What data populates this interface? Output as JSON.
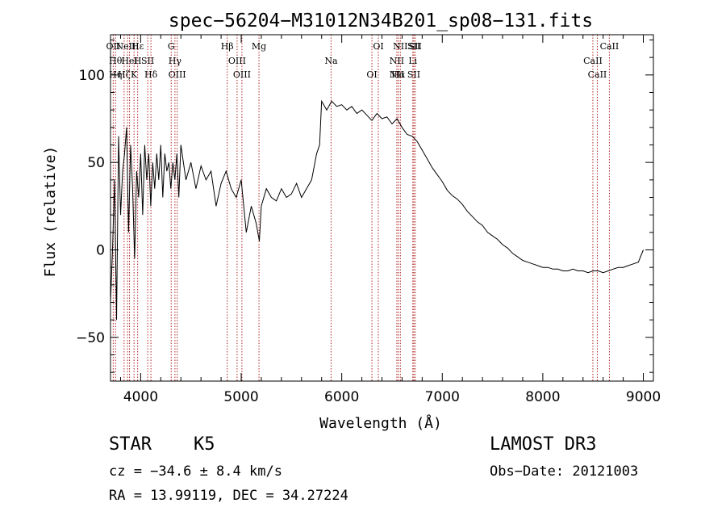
{
  "chart_data": {
    "type": "line",
    "title": "spec−56204−M31012N34B201_sp08−131.fits",
    "xlabel": "Wavelength (Å)",
    "ylabel": "Flux (relative)",
    "xlim": [
      3700,
      9100
    ],
    "ylim": [
      -75,
      123
    ],
    "x_ticks": [
      {
        "value": 4000,
        "label": "4000"
      },
      {
        "value": 5000,
        "label": "5000"
      },
      {
        "value": 6000,
        "label": "6000"
      },
      {
        "value": 7000,
        "label": "7000"
      },
      {
        "value": 8000,
        "label": "8000"
      },
      {
        "value": 9000,
        "label": "9000"
      }
    ],
    "y_ticks": [
      {
        "value": -50,
        "label": "−50"
      },
      {
        "value": 0,
        "label": "0"
      },
      {
        "value": 50,
        "label": "50"
      },
      {
        "value": 100,
        "label": "100"
      }
    ],
    "series": [
      {
        "name": "flux",
        "x": [
          3700,
          3720,
          3740,
          3760,
          3780,
          3800,
          3820,
          3840,
          3860,
          3880,
          3900,
          3920,
          3940,
          3960,
          3980,
          4000,
          4020,
          4040,
          4060,
          4080,
          4100,
          4120,
          4140,
          4160,
          4180,
          4200,
          4220,
          4240,
          4260,
          4280,
          4300,
          4320,
          4340,
          4360,
          4380,
          4400,
          4450,
          4500,
          4550,
          4600,
          4650,
          4700,
          4750,
          4800,
          4850,
          4900,
          4950,
          5000,
          5050,
          5100,
          5150,
          5180,
          5200,
          5250,
          5300,
          5350,
          5400,
          5450,
          5500,
          5550,
          5600,
          5650,
          5700,
          5750,
          5780,
          5800,
          5850,
          5900,
          5950,
          6000,
          6050,
          6100,
          6150,
          6200,
          6250,
          6300,
          6350,
          6400,
          6450,
          6500,
          6550,
          6600,
          6650,
          6700,
          6750,
          6800,
          6850,
          6900,
          6950,
          7000,
          7050,
          7100,
          7150,
          7200,
          7250,
          7300,
          7350,
          7400,
          7450,
          7500,
          7550,
          7600,
          7650,
          7700,
          7750,
          7800,
          7850,
          7900,
          7950,
          8000,
          8050,
          8100,
          8150,
          8200,
          8250,
          8300,
          8350,
          8400,
          8450,
          8500,
          8550,
          8600,
          8650,
          8700,
          8750,
          8800,
          8850,
          8900,
          8950,
          9000
        ],
        "y": [
          -30,
          0,
          40,
          -40,
          65,
          20,
          45,
          55,
          70,
          10,
          60,
          35,
          -5,
          45,
          30,
          55,
          20,
          60,
          40,
          55,
          25,
          50,
          35,
          55,
          40,
          60,
          30,
          55,
          45,
          50,
          35,
          50,
          40,
          55,
          30,
          60,
          40,
          50,
          35,
          48,
          40,
          45,
          25,
          38,
          45,
          35,
          30,
          40,
          10,
          25,
          15,
          5,
          25,
          35,
          30,
          28,
          35,
          30,
          32,
          38,
          30,
          35,
          40,
          55,
          60,
          85,
          80,
          85,
          82,
          83,
          80,
          82,
          78,
          80,
          77,
          74,
          78,
          75,
          76,
          72,
          75,
          70,
          66,
          65,
          62,
          57,
          52,
          47,
          43,
          39,
          34,
          31,
          29,
          26,
          22,
          19,
          16,
          14,
          10,
          8,
          6,
          3,
          1,
          -2,
          -4,
          -6,
          -7,
          -8,
          -9,
          -10,
          -10,
          -11,
          -11,
          -12,
          -12,
          -11,
          -12,
          -12,
          -13,
          -12,
          -12,
          -13,
          -12,
          -11,
          -10,
          -10,
          -9,
          -8,
          -7,
          0
        ]
      }
    ],
    "lines": [
      {
        "x": 3727,
        "labels": [
          "OII"
        ]
      },
      {
        "x": 3750,
        "labels": [
          "Hθ",
          "Hη"
        ]
      },
      {
        "x": 3835,
        "labels": [
          "Hζ"
        ]
      },
      {
        "x": 3869,
        "labels": [
          "NeIII"
        ]
      },
      {
        "x": 3889,
        "labels": [
          "HeI"
        ]
      },
      {
        "x": 3934,
        "labels": [
          "K"
        ]
      },
      {
        "x": 3970,
        "labels": [
          "Hε",
          "H"
        ]
      },
      {
        "x": 4070,
        "labels": [
          "SII"
        ]
      },
      {
        "x": 4102,
        "labels": [
          "Hδ"
        ]
      },
      {
        "x": 4304,
        "labels": [
          "G"
        ]
      },
      {
        "x": 4341,
        "labels": [
          "Hγ"
        ]
      },
      {
        "x": 4363,
        "labels": [
          "OIII"
        ]
      },
      {
        "x": 4861,
        "labels": [
          "Hβ"
        ]
      },
      {
        "x": 4959,
        "labels": [
          "OIII"
        ]
      },
      {
        "x": 5007,
        "labels": [
          "OIII"
        ]
      },
      {
        "x": 5177,
        "labels": [
          "Mg"
        ]
      },
      {
        "x": 5894,
        "labels": [
          "Na"
        ]
      },
      {
        "x": 6300,
        "labels": [
          "OI"
        ]
      },
      {
        "x": 6364,
        "labels": [
          "OI"
        ]
      },
      {
        "x": 6548,
        "labels": [
          "NII",
          "NII"
        ]
      },
      {
        "x": 6563,
        "labels": [
          "Hα"
        ]
      },
      {
        "x": 6583,
        "labels": [
          "NII"
        ]
      },
      {
        "x": 6707,
        "labels": [
          "Li"
        ]
      },
      {
        "x": 6717,
        "labels": [
          "SII",
          "SII"
        ]
      },
      {
        "x": 6731,
        "labels": [
          "SII"
        ]
      },
      {
        "x": 8498,
        "labels": [
          "CaII"
        ]
      },
      {
        "x": 8542,
        "labels": [
          "CaII"
        ]
      },
      {
        "x": 8662,
        "labels": [
          "CaII"
        ]
      }
    ]
  },
  "info": {
    "class": "STAR",
    "subclass": "K5",
    "survey": "LAMOST DR3",
    "redshift": "cz = −34.6 ± 8.4 km/s",
    "obs_date": "Obs−Date: 20121003",
    "coords": "RA =  13.99119, DEC =  34.27224"
  },
  "colors": {
    "spectrum": "#000000",
    "line_marker": "#b22222",
    "axes": "#000000",
    "background": "#ffffff"
  }
}
